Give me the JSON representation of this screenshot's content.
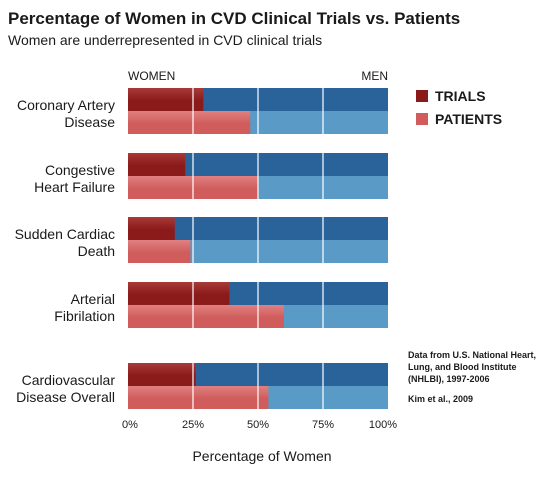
{
  "chart_data": {
    "type": "bar",
    "orientation": "horizontal",
    "stacked": true,
    "title": "Percentage of Women in CVD Clinical Trials vs. Patients",
    "subtitle": "Women are underrepresented in CVD clinical trials",
    "xlabel": "Percentage of Women",
    "xlim": [
      0,
      100
    ],
    "xticks": [
      "0%",
      "25%",
      "50%",
      "75%",
      "100%"
    ],
    "axis_end_labels": {
      "left": "WOMEN",
      "right": "MEN"
    },
    "grid": true,
    "legend_position": "right",
    "categories": [
      "Coronary Artery\nDisease",
      "Congestive\nHeart Failure",
      "Sudden Cardiac\nDeath",
      "Arterial\nFibrilation",
      "Cardiovascular\nDisease Overall"
    ],
    "series": [
      {
        "name": "TRIALS",
        "values": [
          29,
          22,
          18,
          39,
          26
        ],
        "color": "#8b1a1a",
        "remainder_color": "#2a6399"
      },
      {
        "name": "PATIENTS",
        "values": [
          47,
          50,
          24,
          60,
          54
        ],
        "color": "#d05c5c",
        "remainder_color": "#5a9ac6"
      }
    ],
    "notes": [
      "Data from U.S. National Heart, Lung, and Blood Institute (NHLBI), 1997-2006",
      "Kim et al., 2009"
    ]
  }
}
